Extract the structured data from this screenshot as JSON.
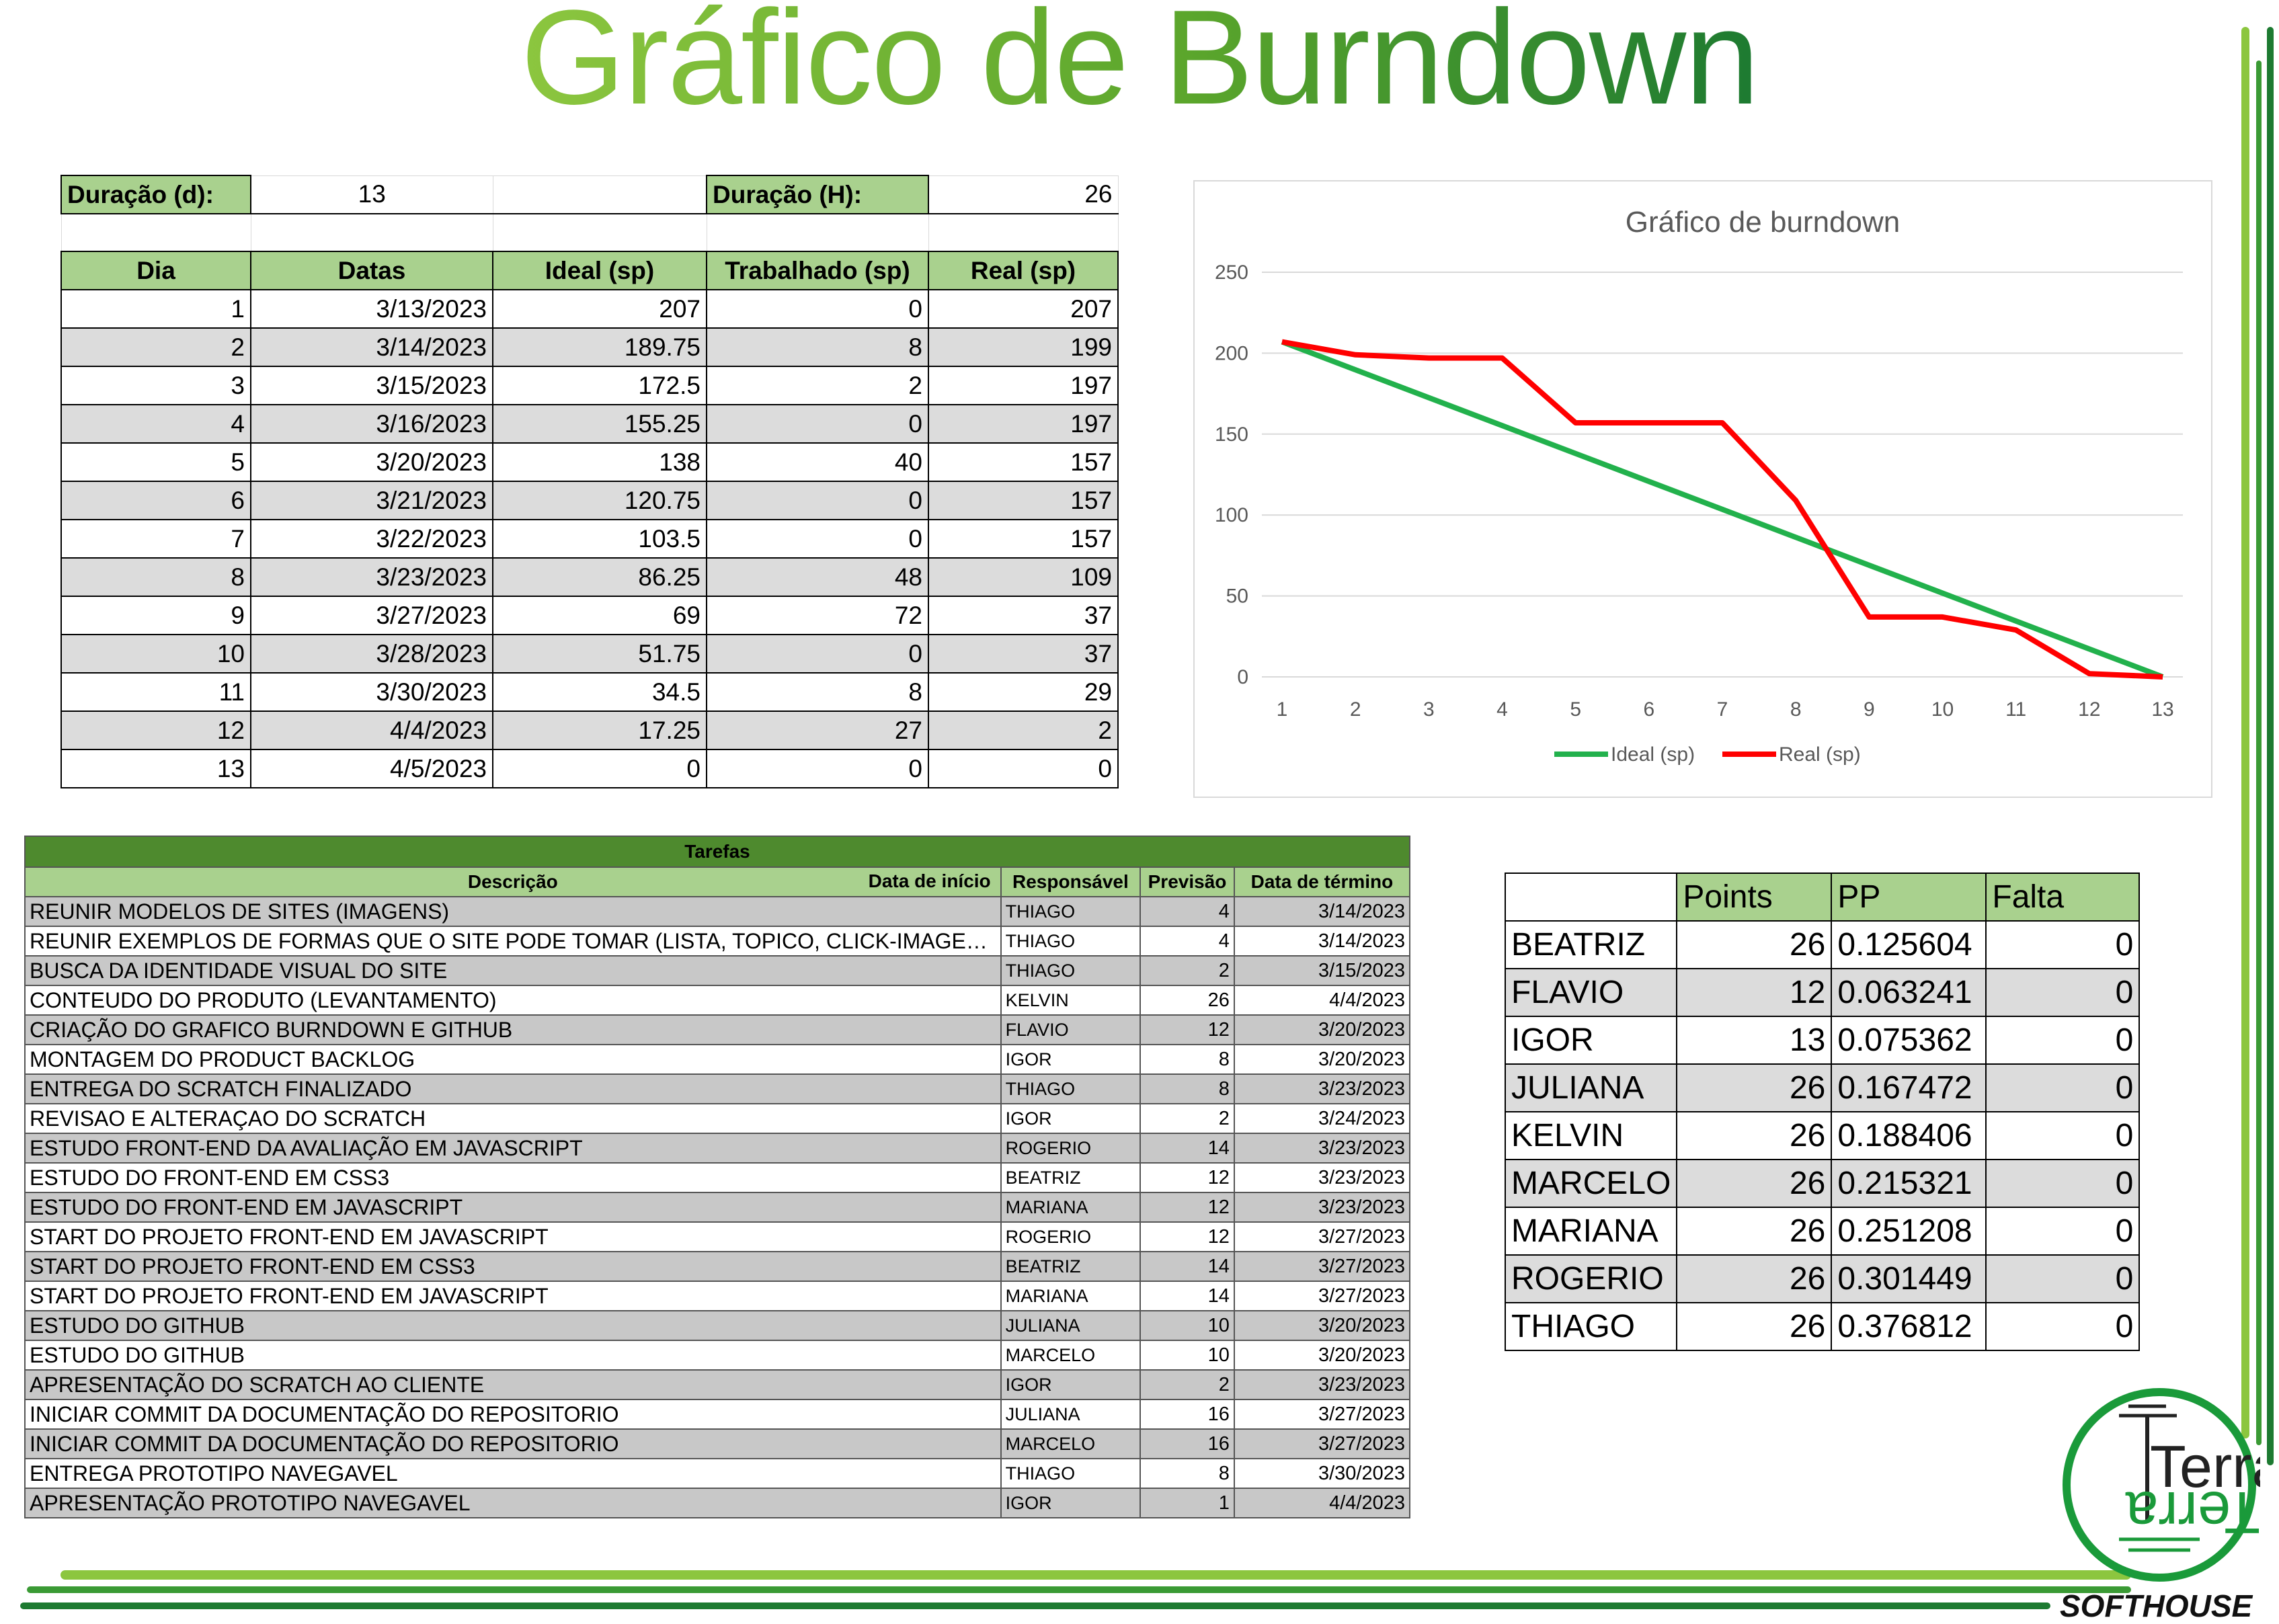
{
  "title": "Gráfico de Burndown",
  "duration": {
    "days_label": "Duração (d):",
    "days_value": "13",
    "hours_label": "Duração (H):",
    "hours_value": "26"
  },
  "burndown_table": {
    "headers": [
      "Dia",
      "Datas",
      "Ideal (sp)",
      "Trabalhado (sp)",
      "Real (sp)"
    ],
    "rows": [
      [
        "1",
        "3/13/2023",
        "207",
        "0",
        "207"
      ],
      [
        "2",
        "3/14/2023",
        "189.75",
        "8",
        "199"
      ],
      [
        "3",
        "3/15/2023",
        "172.5",
        "2",
        "197"
      ],
      [
        "4",
        "3/16/2023",
        "155.25",
        "0",
        "197"
      ],
      [
        "5",
        "3/20/2023",
        "138",
        "40",
        "157"
      ],
      [
        "6",
        "3/21/2023",
        "120.75",
        "0",
        "157"
      ],
      [
        "7",
        "3/22/2023",
        "103.5",
        "0",
        "157"
      ],
      [
        "8",
        "3/23/2023",
        "86.25",
        "48",
        "109"
      ],
      [
        "9",
        "3/27/2023",
        "69",
        "72",
        "37"
      ],
      [
        "10",
        "3/28/2023",
        "51.75",
        "0",
        "37"
      ],
      [
        "11",
        "3/30/2023",
        "34.5",
        "8",
        "29"
      ],
      [
        "12",
        "4/4/2023",
        "17.25",
        "27",
        "2"
      ],
      [
        "13",
        "4/5/2023",
        "0",
        "0",
        "0"
      ]
    ]
  },
  "chart_data": {
    "type": "line",
    "title": "Gráfico de burndown",
    "x": [
      1,
      2,
      3,
      4,
      5,
      6,
      7,
      8,
      9,
      10,
      11,
      12,
      13
    ],
    "series": [
      {
        "name": "Ideal (sp)",
        "color": "#22b14c",
        "values": [
          207,
          189.75,
          172.5,
          155.25,
          138,
          120.75,
          103.5,
          86.25,
          69,
          51.75,
          34.5,
          17.25,
          0
        ]
      },
      {
        "name": "Real (sp)",
        "color": "#ff0000",
        "values": [
          207,
          199,
          197,
          197,
          157,
          157,
          157,
          109,
          37,
          37,
          29,
          2,
          0
        ]
      }
    ],
    "ylim": [
      0,
      250
    ],
    "yticks": [
      0,
      50,
      100,
      150,
      200,
      250
    ],
    "grid": true,
    "legend": "bottom"
  },
  "tasks": {
    "title": "Tarefas",
    "headers": {
      "desc": "Descrição",
      "start": "Data de início",
      "who": "Responsável",
      "forecast": "Previsão",
      "end": "Data de término"
    },
    "rows": [
      [
        "REUNIR MODELOS DE SITES (IMAGENS)",
        "THIAGO",
        "4",
        "3/14/2023"
      ],
      [
        "REUNIR EXEMPLOS DE FORMAS QUE O SITE PODE TOMAR (LISTA, TOPICO, CLICK-IMAGE…",
        "THIAGO",
        "4",
        "3/14/2023"
      ],
      [
        "BUSCA DA IDENTIDADE VISUAL DO SITE",
        "THIAGO",
        "2",
        "3/15/2023"
      ],
      [
        "CONTEUDO DO PRODUTO (LEVANTAMENTO)",
        "KELVIN",
        "26",
        "4/4/2023"
      ],
      [
        "CRIAÇÃO DO GRAFICO BURNDOWN E GITHUB",
        "FLAVIO",
        "12",
        "3/20/2023"
      ],
      [
        "MONTAGEM DO PRODUCT BACKLOG",
        "IGOR",
        "8",
        "3/20/2023"
      ],
      [
        "ENTREGA DO SCRATCH FINALIZADO",
        "THIAGO",
        "8",
        "3/23/2023"
      ],
      [
        "REVISAO E ALTERAÇAO DO SCRATCH",
        "IGOR",
        "2",
        "3/24/2023"
      ],
      [
        "ESTUDO FRONT-END DA AVALIAÇÃO EM JAVASCRIPT",
        "ROGERIO",
        "14",
        "3/23/2023"
      ],
      [
        "ESTUDO DO FRONT-END EM CSS3",
        "BEATRIZ",
        "12",
        "3/23/2023"
      ],
      [
        "ESTUDO DO FRONT-END EM JAVASCRIPT",
        "MARIANA",
        "12",
        "3/23/2023"
      ],
      [
        "START DO PROJETO FRONT-END EM JAVASCRIPT",
        "ROGERIO",
        "12",
        "3/27/2023"
      ],
      [
        "START DO PROJETO FRONT-END EM CSS3",
        "BEATRIZ",
        "14",
        "3/27/2023"
      ],
      [
        "START DO PROJETO FRONT-END EM JAVASCRIPT",
        "MARIANA",
        "14",
        "3/27/2023"
      ],
      [
        "ESTUDO DO GITHUB",
        "JULIANA",
        "10",
        "3/20/2023"
      ],
      [
        "ESTUDO DO GITHUB",
        "MARCELO",
        "10",
        "3/20/2023"
      ],
      [
        "APRESENTAÇÃO DO SCRATCH AO CLIENTE",
        "IGOR",
        "2",
        "3/23/2023"
      ],
      [
        "INICIAR COMMIT DA DOCUMENTAÇÃO DO REPOSITORIO",
        "JULIANA",
        "16",
        "3/27/2023"
      ],
      [
        "INICIAR COMMIT DA DOCUMENTAÇÃO DO REPOSITORIO",
        "MARCELO",
        "16",
        "3/27/2023"
      ],
      [
        "ENTREGA PROTOTIPO NAVEGAVEL",
        "THIAGO",
        "8",
        "3/30/2023"
      ],
      [
        "APRESENTAÇÃO PROTOTIPO NAVEGAVEL",
        "IGOR",
        "1",
        "4/4/2023"
      ]
    ]
  },
  "points": {
    "headers": [
      "",
      "Points",
      "PP",
      "Falta"
    ],
    "rows": [
      [
        "BEATRIZ",
        "26",
        "0.125604",
        "0"
      ],
      [
        "FLAVIO",
        "12",
        "0.063241",
        "0"
      ],
      [
        "IGOR",
        "13",
        "0.075362",
        "0"
      ],
      [
        "JULIANA",
        "26",
        "0.167472",
        "0"
      ],
      [
        "KELVIN",
        "26",
        "0.188406",
        "0"
      ],
      [
        "MARCELO",
        "26",
        "0.215321",
        "0"
      ],
      [
        "MARIANA",
        "26",
        "0.251208",
        "0"
      ],
      [
        "ROGERIO",
        "26",
        "0.301449",
        "0"
      ],
      [
        "THIAGO",
        "26",
        "0.376812",
        "0"
      ]
    ]
  },
  "logo": {
    "text": "Terra",
    "tagline": "SOFTHOUSE"
  }
}
